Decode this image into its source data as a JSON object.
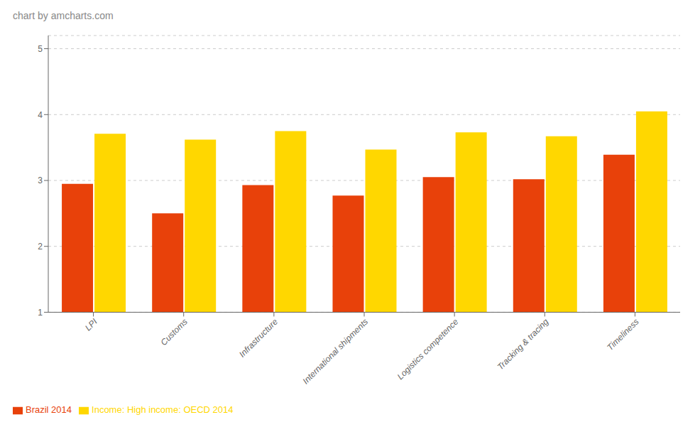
{
  "chart_data": {
    "type": "bar",
    "annotations": [
      "chart by amcharts.com"
    ],
    "categories": [
      "LPI",
      "Customs",
      "Infrastructure",
      "International shipments",
      "Logistics competence",
      "Tracking & tracing",
      "Timeliness"
    ],
    "series": [
      {
        "name": "Brazil 2014",
        "color": "#E8410A",
        "values": [
          2.95,
          2.5,
          2.93,
          2.77,
          3.05,
          3.02,
          3.39
        ]
      },
      {
        "name": "Income: High income: OECD  2014",
        "color": "#FFD700",
        "values": [
          3.71,
          3.62,
          3.75,
          3.47,
          3.73,
          3.67,
          4.05
        ]
      }
    ],
    "ylim": [
      1,
      5.2
    ],
    "yticks": [
      1,
      2,
      3,
      4,
      5
    ],
    "grid": true,
    "legend": "bottom"
  }
}
